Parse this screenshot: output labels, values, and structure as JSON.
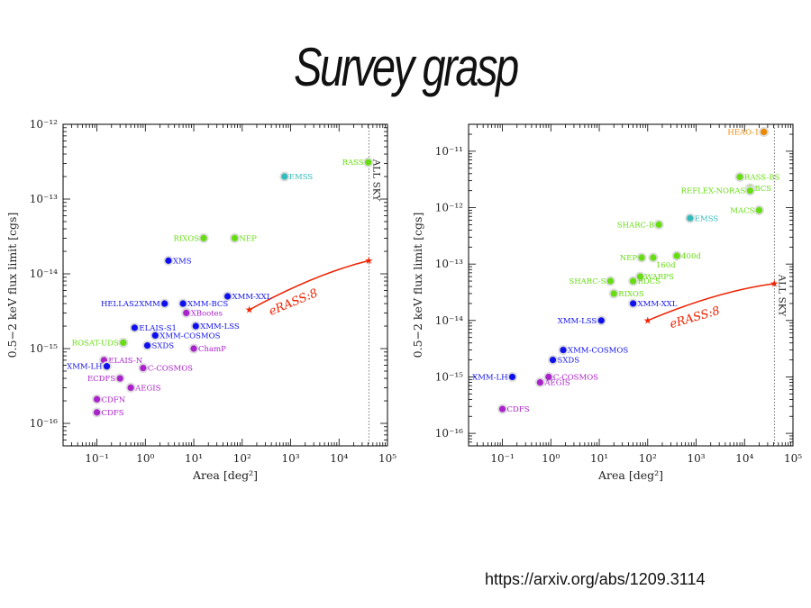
{
  "slide": {
    "title": "Survey grasp",
    "source_url": "https://arxiv.org/abs/1209.3114"
  },
  "colors": {
    "blue": "#1010ee",
    "green": "#66dd11",
    "cyan": "#33bbbb",
    "magenta": "#aa22cc",
    "orange": "#ee8800",
    "red": "#ee2200"
  },
  "chart_data": [
    {
      "type": "scatter",
      "xlabel": "Area [deg²]",
      "ylabel": "0.5−2 keV flux limit [cgs]",
      "xscale": "log",
      "yscale": "log",
      "xlim": [
        0.02,
        100000
      ],
      "ylim": [
        5e-17,
        1e-12
      ],
      "x_ticks": [
        0.1,
        1,
        10,
        100,
        1000,
        10000,
        100000
      ],
      "x_tick_labels": [
        "10⁻¹",
        "10⁰",
        "10¹",
        "10²",
        "10³",
        "10⁴",
        "10⁵"
      ],
      "y_ticks": [
        1e-16,
        1e-15,
        1e-14,
        1e-13,
        1e-12
      ],
      "y_tick_labels": [
        "10⁻¹⁶",
        "10⁻¹⁵",
        "10⁻¹⁴",
        "10⁻¹³",
        "10⁻¹²"
      ],
      "all_sky_label": "ALL SKY",
      "all_sky_x": 41253,
      "erass": {
        "label": "eRASS:8",
        "x": [
          140,
          41253
        ],
        "y": [
          3.3e-15,
          1.5e-14
        ]
      },
      "points": [
        {
          "name": "RASS",
          "x": 40000,
          "y": 3.1e-13,
          "color": "green",
          "label_side": "left"
        },
        {
          "name": "EMSS",
          "x": 750,
          "y": 2e-13,
          "color": "cyan",
          "label_side": "right"
        },
        {
          "name": "RIXOS",
          "x": 16,
          "y": 3e-14,
          "color": "green",
          "label_side": "left"
        },
        {
          "name": "NEP",
          "x": 70,
          "y": 3e-14,
          "color": "green",
          "label_side": "right"
        },
        {
          "name": "XMS",
          "x": 3,
          "y": 1.5e-14,
          "color": "blue",
          "label_side": "right"
        },
        {
          "name": "XMM-XXL",
          "x": 50,
          "y": 5e-15,
          "color": "blue",
          "label_side": "right"
        },
        {
          "name": "HELLAS2XMM",
          "x": 2.5,
          "y": 4e-15,
          "color": "blue",
          "label_side": "left"
        },
        {
          "name": "XMM-BCS",
          "x": 6,
          "y": 4e-15,
          "color": "blue",
          "label_side": "right"
        },
        {
          "name": "XBootes",
          "x": 7,
          "y": 3e-15,
          "color": "magenta",
          "label_side": "right"
        },
        {
          "name": "ELAIS-S1",
          "x": 0.6,
          "y": 1.9e-15,
          "color": "blue",
          "label_side": "right"
        },
        {
          "name": "XMM-LSS",
          "x": 11,
          "y": 2e-15,
          "color": "blue",
          "label_side": "right"
        },
        {
          "name": "XMM-COSMOS",
          "x": 1.6,
          "y": 1.5e-15,
          "color": "blue",
          "label_side": "right"
        },
        {
          "name": "ROSAT-UDS",
          "x": 0.35,
          "y": 1.2e-15,
          "color": "green",
          "label_side": "left"
        },
        {
          "name": "SXDS",
          "x": 1.1,
          "y": 1.1e-15,
          "color": "blue",
          "label_side": "right"
        },
        {
          "name": "ChamP",
          "x": 10,
          "y": 1e-15,
          "color": "magenta",
          "label_side": "right"
        },
        {
          "name": "ELAIS-N",
          "x": 0.14,
          "y": 7e-16,
          "color": "magenta",
          "label_side": "right"
        },
        {
          "name": "XMM-LH",
          "x": 0.16,
          "y": 5.8e-16,
          "color": "blue",
          "label_side": "left"
        },
        {
          "name": "C-COSMOS",
          "x": 0.9,
          "y": 5.5e-16,
          "color": "magenta",
          "label_side": "right"
        },
        {
          "name": "ECDFS",
          "x": 0.3,
          "y": 4e-16,
          "color": "magenta",
          "label_side": "left"
        },
        {
          "name": "AEGIS",
          "x": 0.5,
          "y": 3e-16,
          "color": "magenta",
          "label_side": "right"
        },
        {
          "name": "CDFN",
          "x": 0.1,
          "y": 2.1e-16,
          "color": "magenta",
          "label_side": "right"
        },
        {
          "name": "CDFS",
          "x": 0.1,
          "y": 1.4e-16,
          "color": "magenta",
          "label_side": "right"
        }
      ]
    },
    {
      "type": "scatter",
      "xlabel": "Area [deg²]",
      "ylabel": "0.5−2 keV flux limit [cgs]",
      "xscale": "log",
      "yscale": "log",
      "xlim": [
        0.02,
        100000
      ],
      "ylim": [
        6e-17,
        3e-11
      ],
      "x_ticks": [
        0.1,
        1,
        10,
        100,
        1000,
        10000,
        100000
      ],
      "x_tick_labels": [
        "10⁻¹",
        "10⁰",
        "10¹",
        "10²",
        "10³",
        "10⁴",
        "10⁵"
      ],
      "y_ticks": [
        1e-16,
        1e-15,
        1e-14,
        1e-13,
        1e-12,
        1e-11
      ],
      "y_tick_labels": [
        "10⁻¹⁶",
        "10⁻¹⁵",
        "10⁻¹⁴",
        "10⁻¹³",
        "10⁻¹²",
        "10⁻¹¹"
      ],
      "all_sky_label": "ALL SKY",
      "all_sky_x": 41253,
      "erass": {
        "label": "eRASS:8",
        "x": [
          100,
          41253
        ],
        "y": [
          1e-14,
          4.5e-14
        ]
      },
      "points": [
        {
          "name": "HEAO-1",
          "x": 25000,
          "y": 2.2e-11,
          "color": "orange",
          "label_side": "left"
        },
        {
          "name": "RASS-BS",
          "x": 8000,
          "y": 3.5e-12,
          "color": "green",
          "label_side": "right"
        },
        {
          "name": "BCS",
          "x": 13000,
          "y": 2.2e-12,
          "color": "green",
          "label_side": "right"
        },
        {
          "name": "REFLEX-NORAS",
          "x": 13000,
          "y": 2e-12,
          "color": "green",
          "label_side": "left"
        },
        {
          "name": "MACS",
          "x": 20000,
          "y": 9e-13,
          "color": "green",
          "label_side": "left"
        },
        {
          "name": "EMSS",
          "x": 750,
          "y": 6.5e-13,
          "color": "cyan",
          "label_side": "right"
        },
        {
          "name": "SHARC-B",
          "x": 170,
          "y": 5e-13,
          "color": "green",
          "label_side": "left"
        },
        {
          "name": "400d",
          "x": 400,
          "y": 1.4e-13,
          "color": "green",
          "label_side": "right"
        },
        {
          "name": "NEP",
          "x": 75,
          "y": 1.3e-13,
          "color": "green",
          "label_side": "left"
        },
        {
          "name": "160d",
          "x": 130,
          "y": 1.3e-13,
          "color": "green",
          "label_side": "below-right"
        },
        {
          "name": "WARPS",
          "x": 70,
          "y": 6e-14,
          "color": "green",
          "label_side": "right"
        },
        {
          "name": "SHARC-S",
          "x": 17,
          "y": 5e-14,
          "color": "green",
          "label_side": "left"
        },
        {
          "name": "RDCS",
          "x": 50,
          "y": 5e-14,
          "color": "green",
          "label_side": "right"
        },
        {
          "name": "RIXOS",
          "x": 20,
          "y": 3e-14,
          "color": "green",
          "label_side": "right"
        },
        {
          "name": "XMM-XXL",
          "x": 50,
          "y": 2e-14,
          "color": "blue",
          "label_side": "right"
        },
        {
          "name": "XMM-LSS",
          "x": 11,
          "y": 1e-14,
          "color": "blue",
          "label_side": "left"
        },
        {
          "name": "XMM-COSMOS",
          "x": 1.8,
          "y": 3e-15,
          "color": "blue",
          "label_side": "right"
        },
        {
          "name": "SXDS",
          "x": 1.1,
          "y": 2e-15,
          "color": "blue",
          "label_side": "right"
        },
        {
          "name": "XMM-LH",
          "x": 0.16,
          "y": 1e-15,
          "color": "blue",
          "label_side": "left"
        },
        {
          "name": "C-COSMOS",
          "x": 0.9,
          "y": 1e-15,
          "color": "magenta",
          "label_side": "right"
        },
        {
          "name": "AEGIS",
          "x": 0.6,
          "y": 8e-16,
          "color": "magenta",
          "label_side": "right"
        },
        {
          "name": "CDFS",
          "x": 0.1,
          "y": 2.7e-16,
          "color": "magenta",
          "label_side": "right"
        }
      ]
    }
  ]
}
